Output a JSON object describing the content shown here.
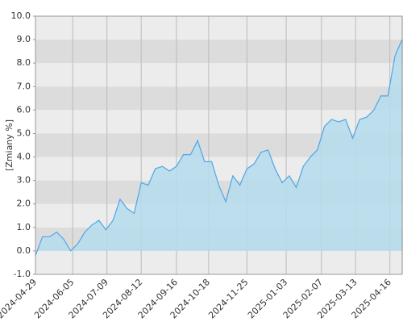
{
  "chart_data": {
    "type": "area",
    "y_label": "[Zmiany %]",
    "x": [
      "2024-04-29",
      "2024-05-06",
      "2024-05-13",
      "2024-05-20",
      "2024-05-27",
      "2024-06-03",
      "2024-06-10",
      "2024-06-17",
      "2024-06-24",
      "2024-07-01",
      "2024-07-08",
      "2024-07-15",
      "2024-07-22",
      "2024-07-29",
      "2024-08-05",
      "2024-08-12",
      "2024-08-19",
      "2024-08-26",
      "2024-09-02",
      "2024-09-09",
      "2024-09-16",
      "2024-09-23",
      "2024-09-30",
      "2024-10-07",
      "2024-10-14",
      "2024-10-21",
      "2024-10-28",
      "2024-11-04",
      "2024-11-11",
      "2024-11-18",
      "2024-11-25",
      "2024-12-02",
      "2024-12-09",
      "2024-12-16",
      "2024-12-23",
      "2024-12-30",
      "2025-01-06",
      "2025-01-13",
      "2025-01-20",
      "2025-01-27",
      "2025-02-03",
      "2025-02-10",
      "2025-02-17",
      "2025-02-24",
      "2025-03-03",
      "2025-03-10",
      "2025-03-17",
      "2025-03-24",
      "2025-03-31",
      "2025-04-07",
      "2025-04-14",
      "2025-04-21",
      "2025-04-28"
    ],
    "series": [
      {
        "color": "#4da6e8",
        "fill": "#b5dcec",
        "values": [
          -0.2,
          0.6,
          0.6,
          0.8,
          0.5,
          0.0,
          0.3,
          0.8,
          1.1,
          1.3,
          0.9,
          1.3,
          2.2,
          1.8,
          1.6,
          2.9,
          2.8,
          3.5,
          3.6,
          3.4,
          3.6,
          4.1,
          4.1,
          4.7,
          3.8,
          3.8,
          2.8,
          2.1,
          3.2,
          2.8,
          3.5,
          3.7,
          4.2,
          4.3,
          3.5,
          2.9,
          3.2,
          2.7,
          3.6,
          4.0,
          4.3,
          5.3,
          5.6,
          5.5,
          5.6,
          4.8,
          5.6,
          5.7,
          6.0,
          6.6,
          6.6,
          8.3,
          9.0
        ]
      }
    ],
    "xlim": [
      "2024-04-29",
      "2025-04-29"
    ],
    "xticks": [
      "2024-04-29",
      "2024-06-05",
      "2024-07-09",
      "2024-08-12",
      "2024-09-16",
      "2024-10-18",
      "2024-11-25",
      "2025-01-03",
      "2025-02-07",
      "2025-03-13",
      "2025-04-16"
    ],
    "ylim": [
      -1,
      10
    ],
    "yticks": [
      {
        "value": -1,
        "label": "-1.0"
      },
      {
        "value": 0,
        "label": "0.0"
      },
      {
        "value": 1,
        "label": "1.0"
      },
      {
        "value": 2,
        "label": "2.0"
      },
      {
        "value": 3,
        "label": "3.0"
      },
      {
        "value": 4,
        "label": "4.0"
      },
      {
        "value": 5,
        "label": "5.0"
      },
      {
        "value": 6,
        "label": "6.0"
      },
      {
        "value": 7,
        "label": "7.0"
      },
      {
        "value": 8,
        "label": "8.0"
      },
      {
        "value": 9,
        "label": "9.0"
      },
      {
        "value": 10,
        "label": "10.0"
      }
    ],
    "grid": true
  }
}
